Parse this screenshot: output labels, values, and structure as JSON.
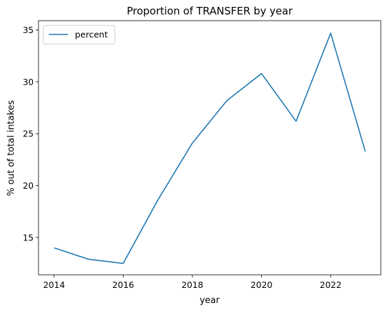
{
  "chart_data": {
    "type": "line",
    "title": "Proportion of TRANSFER by year",
    "xlabel": "year",
    "ylabel": "% out of total intakes",
    "x": [
      2014,
      2015,
      2016,
      2017,
      2018,
      2019,
      2020,
      2021,
      2022,
      2023
    ],
    "series": [
      {
        "name": "percent",
        "color": "#1f77b4",
        "values": [
          14.0,
          12.9,
          12.5,
          18.6,
          24.1,
          28.2,
          30.8,
          26.2,
          34.7,
          23.3
        ]
      }
    ],
    "xlim": [
      2013.55,
      2023.45
    ],
    "ylim": [
      11.4,
      35.9
    ],
    "xticks": [
      "2014",
      "2016",
      "2018",
      "2020",
      "2022"
    ],
    "yticks": [
      "15",
      "20",
      "25",
      "30",
      "35"
    ],
    "legend_position": "top-left",
    "grid": false
  }
}
